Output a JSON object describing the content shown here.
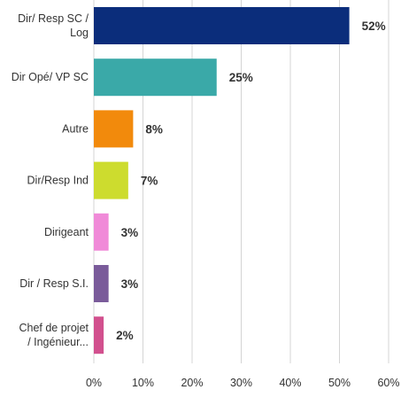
{
  "chart_data": {
    "type": "bar",
    "orientation": "horizontal",
    "categories": [
      [
        "Dir/ Resp SC /",
        "Log"
      ],
      [
        "Dir Opé/ VP SC"
      ],
      [
        "Autre"
      ],
      [
        "Dir/Resp Ind"
      ],
      [
        "Dirigeant"
      ],
      [
        "Dir / Resp S.I."
      ],
      [
        "Chef de projet",
        "/ Ingénieur..."
      ]
    ],
    "values": [
      52,
      25,
      8,
      7,
      3,
      3,
      2
    ],
    "value_labels": [
      "52%",
      "25%",
      "8%",
      "7%",
      "3%",
      "3%",
      "2%"
    ],
    "colors": [
      "#0b2d7b",
      "#3aa9a8",
      "#f28a0c",
      "#cddc2e",
      "#f08ad8",
      "#7a5b9a",
      "#d2508e"
    ],
    "xlim": [
      0,
      60
    ],
    "xticks": [
      0,
      10,
      20,
      30,
      40,
      50,
      60
    ],
    "xtick_labels": [
      "0%",
      "10%",
      "20%",
      "30%",
      "40%",
      "50%",
      "60%"
    ],
    "grid": "vertical",
    "grid_color": "#d4d4d4",
    "label_color": "#333333"
  }
}
